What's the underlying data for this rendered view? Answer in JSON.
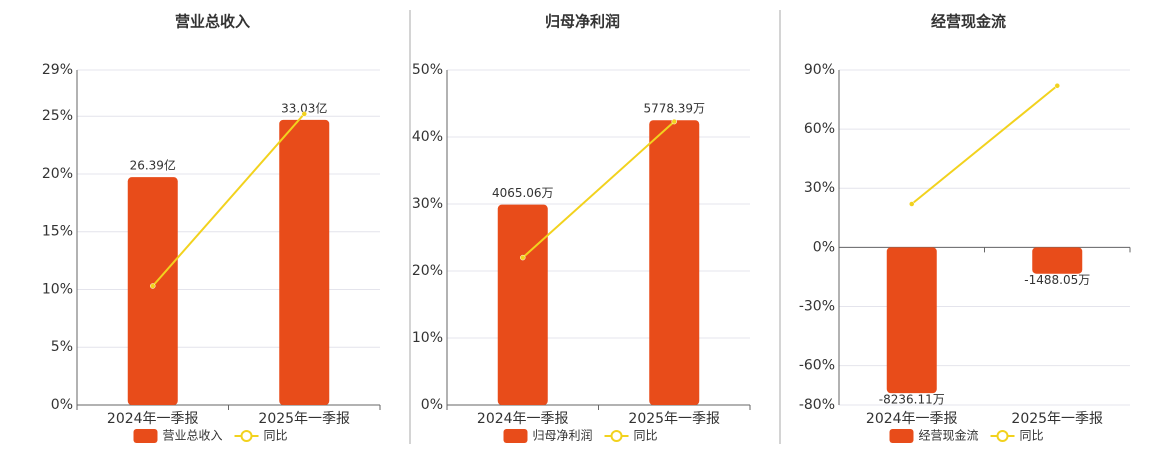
{
  "chart_data": [
    {
      "type": "bar",
      "title": "营业总收入",
      "categories": [
        "2024年一季报",
        "2025年一季报"
      ],
      "series": [
        {
          "name": "营业总收入",
          "color": "#e84c1a",
          "axis": "y2",
          "values": [
            26.39,
            33.03
          ],
          "value_labels": [
            "26.39亿",
            "33.03亿"
          ]
        },
        {
          "name": "同比",
          "type": "line",
          "color": "#f2d21e",
          "values": [
            10.3,
            25.2
          ]
        }
      ],
      "ylim": [
        0,
        29
      ],
      "yticks": [
        {
          "value": 0,
          "label": "0%"
        },
        {
          "value": 5,
          "label": "5%"
        },
        {
          "value": 10,
          "label": "10%"
        },
        {
          "value": 15,
          "label": "15%"
        },
        {
          "value": 20,
          "label": "20%"
        },
        {
          "value": 25,
          "label": "25%"
        },
        {
          "value": 29,
          "label": "29%"
        }
      ],
      "y2lim": [
        0,
        38.8
      ],
      "grid": true
    },
    {
      "type": "bar",
      "title": "归母净利润",
      "categories": [
        "2024年一季报",
        "2025年一季报"
      ],
      "series": [
        {
          "name": "归母净利润",
          "color": "#e84c1a",
          "axis": "y2",
          "values": [
            4065.06,
            5778.39
          ],
          "value_labels": [
            "4065.06万",
            "5778.39万"
          ]
        },
        {
          "name": "同比",
          "type": "line",
          "color": "#f2d21e",
          "values": [
            22,
            42.3
          ]
        }
      ],
      "ylim": [
        0,
        50
      ],
      "yticks": [
        {
          "value": 0,
          "label": "0%"
        },
        {
          "value": 10,
          "label": "10%"
        },
        {
          "value": 20,
          "label": "20%"
        },
        {
          "value": 30,
          "label": "30%"
        },
        {
          "value": 40,
          "label": "40%"
        },
        {
          "value": 50,
          "label": "50%"
        }
      ],
      "y2lim": [
        0,
        6798
      ],
      "grid": true
    },
    {
      "type": "bar",
      "title": "经营现金流",
      "categories": [
        "2024年一季报",
        "2025年一季报"
      ],
      "series": [
        {
          "name": "经营现金流",
          "color": "#e84c1a",
          "axis": "y2",
          "values": [
            -8236.11,
            -1488.05
          ],
          "value_labels": [
            "-8236.11万",
            "-1488.05万"
          ]
        },
        {
          "name": "同比",
          "type": "line",
          "color": "#f2d21e",
          "values": [
            22,
            82
          ]
        }
      ],
      "ylim": [
        -80,
        90
      ],
      "yticks": [
        {
          "value": -80,
          "label": "-80%"
        },
        {
          "value": -60,
          "label": "-60%"
        },
        {
          "value": -30,
          "label": "-30%"
        },
        {
          "value": 0,
          "label": "0%"
        },
        {
          "value": 30,
          "label": "30%"
        },
        {
          "value": 60,
          "label": "60%"
        },
        {
          "value": 90,
          "label": "90%"
        }
      ],
      "y2lim": [
        -8904,
        10017
      ],
      "grid": true
    }
  ]
}
